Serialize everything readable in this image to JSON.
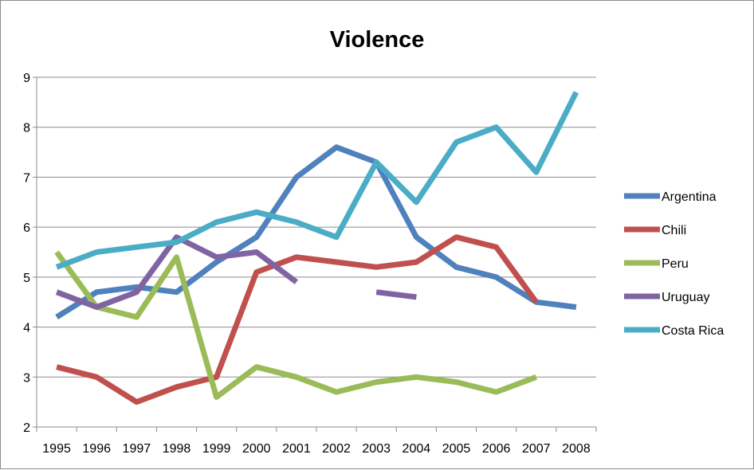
{
  "chart_data": {
    "type": "line",
    "title": "Violence",
    "xlabel": "",
    "ylabel": "",
    "categories": [
      "1995",
      "1996",
      "1997",
      "1998",
      "1999",
      "2000",
      "2001",
      "2002",
      "2003",
      "2004",
      "2005",
      "2006",
      "2007",
      "2008"
    ],
    "ylim": [
      2,
      9
    ],
    "yticks": [
      2,
      3,
      4,
      5,
      6,
      7,
      8,
      9
    ],
    "grid": "horizontal",
    "legend": "right",
    "series": [
      {
        "name": "Argentina",
        "color": "#4f81bd",
        "values": [
          4.2,
          4.7,
          4.8,
          4.7,
          5.3,
          5.8,
          7.0,
          7.6,
          7.3,
          5.8,
          5.2,
          5.0,
          4.5,
          4.4
        ]
      },
      {
        "name": "Chili",
        "color": "#c0504d",
        "values": [
          3.2,
          3.0,
          2.5,
          2.8,
          3.0,
          5.1,
          5.4,
          5.3,
          5.2,
          5.3,
          5.8,
          5.6,
          4.5,
          null
        ]
      },
      {
        "name": "Peru",
        "color": "#9bbb59",
        "values": [
          5.5,
          4.4,
          4.2,
          5.4,
          2.6,
          3.2,
          3.0,
          2.7,
          2.9,
          3.0,
          2.9,
          2.7,
          3.0,
          null
        ]
      },
      {
        "name": "Uruguay",
        "color": "#8064a2",
        "values": [
          4.7,
          4.4,
          4.7,
          5.8,
          5.4,
          5.5,
          4.9,
          null,
          4.7,
          4.6,
          null,
          null,
          null,
          null
        ]
      },
      {
        "name": "Costa Rica",
        "color": "#4bacc6",
        "values": [
          5.2,
          5.5,
          5.6,
          5.7,
          6.1,
          6.3,
          6.1,
          5.8,
          7.3,
          6.5,
          7.7,
          8.0,
          7.1,
          8.7
        ]
      }
    ]
  }
}
